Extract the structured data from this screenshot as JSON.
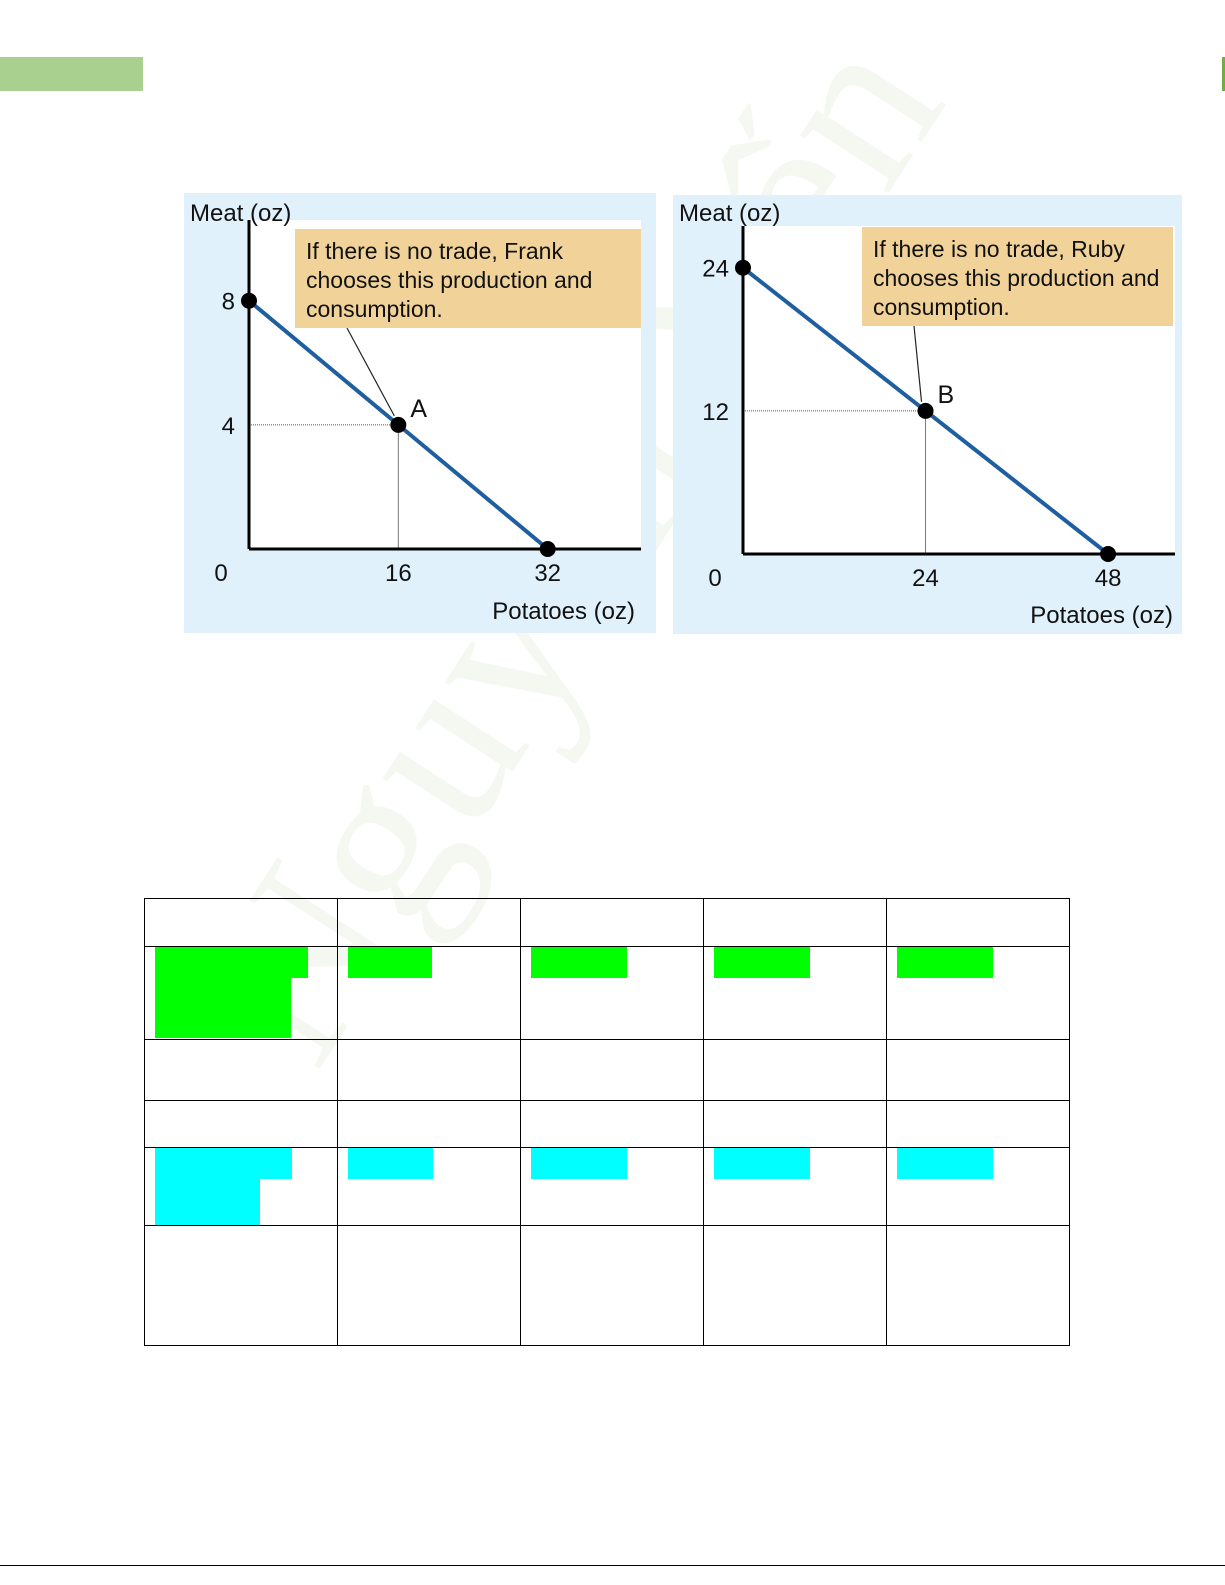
{
  "colors": {
    "tab_green": "#a9d08e",
    "right_tab": "#70ad47",
    "panel_bg": "#e1f1fb",
    "plot_bg": "#ffffff",
    "callout_bg": "#f1d39a",
    "line": "#1f5fa0",
    "highlight_green": "#00ff00",
    "highlight_cyan": "#00ffff",
    "watermark": "#70ad47"
  },
  "watermark": {
    "text": "Nguyễn Yến"
  },
  "chart_data": [
    {
      "type": "line",
      "ylabel": "Meat (oz)",
      "xlabel": "Potatoes (oz)",
      "xlim": [
        0,
        42
      ],
      "ylim": [
        0,
        10.6
      ],
      "xticks": [
        0,
        16,
        32
      ],
      "yticks": [
        4,
        8
      ],
      "origin_label": "0",
      "x_tick_labels": [
        "16",
        "32"
      ],
      "y_tick_labels": [
        "4",
        "8"
      ],
      "series": [
        {
          "x": [
            0,
            32
          ],
          "y": [
            8,
            0
          ]
        }
      ],
      "points": [
        {
          "x": 0,
          "y": 8,
          "label": ""
        },
        {
          "x": 16,
          "y": 4,
          "label": "A"
        },
        {
          "x": 32,
          "y": 0,
          "label": ""
        }
      ],
      "annotation": "If there is no trade, Frank chooses this production and consumption.",
      "annotation_lines": [
        "If there is no trade, Frank",
        "chooses this production and",
        "consumption."
      ]
    },
    {
      "type": "line",
      "ylabel": "Meat (oz)",
      "xlabel": "Potatoes (oz)",
      "xlim": [
        0,
        56.8
      ],
      "ylim": [
        0,
        27.5
      ],
      "xticks": [
        0,
        24,
        48
      ],
      "yticks": [
        12,
        24
      ],
      "origin_label": "0",
      "x_tick_labels": [
        "24",
        "48"
      ],
      "y_tick_labels": [
        "12",
        "24"
      ],
      "series": [
        {
          "x": [
            0,
            48
          ],
          "y": [
            24,
            0
          ]
        }
      ],
      "points": [
        {
          "x": 0,
          "y": 24,
          "label": ""
        },
        {
          "x": 24,
          "y": 12,
          "label": "B"
        },
        {
          "x": 48,
          "y": 0,
          "label": ""
        }
      ],
      "annotation": "If there is no trade, Ruby chooses this production and consumption.",
      "annotation_lines": [
        "If there is no trade, Ruby",
        "chooses this production and",
        "consumption."
      ]
    }
  ]
}
